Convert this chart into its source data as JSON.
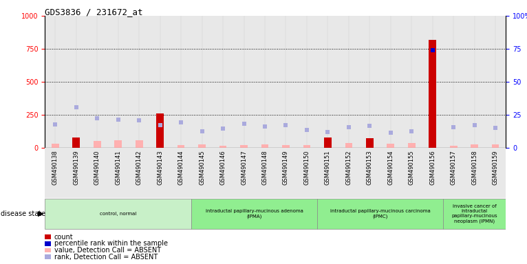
{
  "title": "GDS3836 / 231672_at",
  "samples": [
    "GSM490138",
    "GSM490139",
    "GSM490140",
    "GSM490141",
    "GSM490142",
    "GSM490143",
    "GSM490144",
    "GSM490145",
    "GSM490146",
    "GSM490147",
    "GSM490148",
    "GSM490149",
    "GSM490150",
    "GSM490151",
    "GSM490152",
    "GSM490153",
    "GSM490154",
    "GSM490155",
    "GSM490156",
    "GSM490157",
    "GSM490158",
    "GSM490159"
  ],
  "value_bars": [
    30,
    80,
    50,
    60,
    55,
    260,
    20,
    25,
    18,
    22,
    25,
    20,
    20,
    80,
    35,
    75,
    30,
    35,
    820,
    18,
    25,
    25
  ],
  "value_absent": [
    true,
    false,
    true,
    true,
    true,
    false,
    true,
    true,
    true,
    true,
    true,
    true,
    true,
    false,
    true,
    false,
    true,
    true,
    false,
    true,
    true,
    true
  ],
  "rank_values": [
    175,
    310,
    225,
    215,
    210,
    170,
    195,
    125,
    145,
    185,
    160,
    170,
    135,
    120,
    155,
    165,
    115,
    125,
    740,
    155,
    170,
    150
  ],
  "rank_absent": [
    true,
    true,
    true,
    true,
    true,
    true,
    true,
    true,
    true,
    true,
    true,
    true,
    true,
    true,
    true,
    true,
    true,
    true,
    false,
    true,
    true,
    true
  ],
  "ylim_left": [
    0,
    1000
  ],
  "ylim_right": [
    0,
    100
  ],
  "yticks_left": [
    0,
    250,
    500,
    750,
    1000
  ],
  "yticks_right": [
    0,
    25,
    50,
    75,
    100
  ],
  "ytick_left_labels": [
    "0",
    "250",
    "500",
    "750",
    "1000"
  ],
  "ytick_right_labels": [
    "0",
    "25",
    "50",
    "75",
    "100%"
  ],
  "disease_groups": [
    {
      "label": "control, normal",
      "start": 0,
      "end": 7,
      "color": "#c8f0c8"
    },
    {
      "label": "intraductal papillary-mucinous adenoma\n(IPMA)",
      "start": 7,
      "end": 13,
      "color": "#90ee90"
    },
    {
      "label": "intraductal papillary-mucinous carcinoma\n(IPMC)",
      "start": 13,
      "end": 19,
      "color": "#90ee90"
    },
    {
      "label": "invasive cancer of\nintraductal\npapillary-mucinous\nneoplasm (IPMN)",
      "start": 19,
      "end": 22,
      "color": "#90ee90"
    }
  ],
  "disease_label": "disease state",
  "bar_color_present": "#cc0000",
  "bar_color_absent": "#ffb0b0",
  "rank_color_present": "#0000cc",
  "rank_color_absent": "#aaaadd",
  "bg_color": "#e8e8e8",
  "bar_width": 0.35,
  "legend_items": [
    {
      "label": "count",
      "color": "#cc0000"
    },
    {
      "label": "percentile rank within the sample",
      "color": "#0000cc"
    },
    {
      "label": "value, Detection Call = ABSENT",
      "color": "#ffb0b0"
    },
    {
      "label": "rank, Detection Call = ABSENT",
      "color": "#aaaadd"
    }
  ]
}
